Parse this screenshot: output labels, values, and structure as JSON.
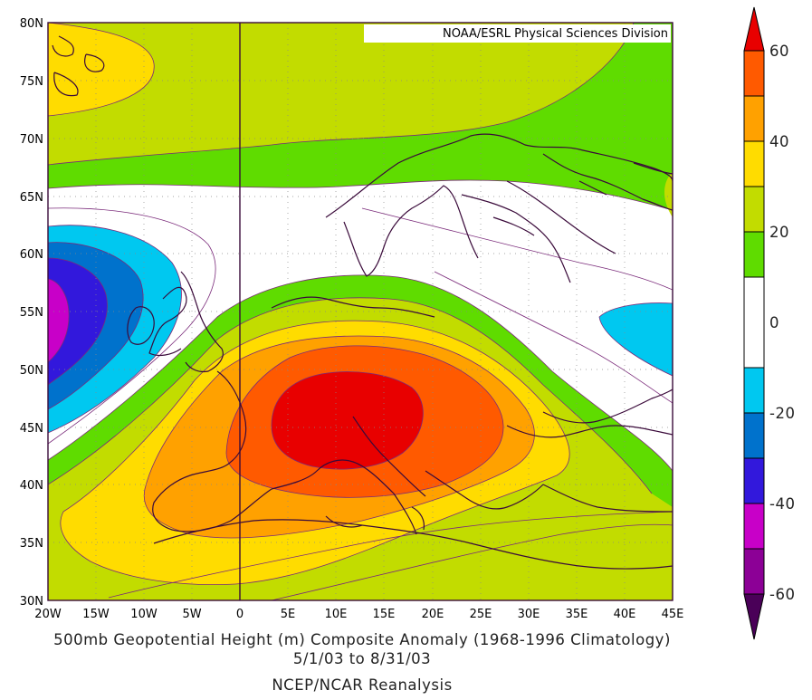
{
  "map": {
    "credit": "NOAA/ESRL Physical Sciences Division",
    "lat_labels": [
      "80N",
      "75N",
      "70N",
      "65N",
      "60N",
      "55N",
      "50N",
      "45N",
      "40N",
      "35N",
      "30N"
    ],
    "lon_labels": [
      "20W",
      "15W",
      "10W",
      "5W",
      "0",
      "5E",
      "10E",
      "15E",
      "20E",
      "25E",
      "30E",
      "35E",
      "40E",
      "45E"
    ],
    "extent": {
      "lon_min": -20,
      "lon_max": 45,
      "lat_min": 30,
      "lat_max": 80
    }
  },
  "caption": {
    "line1": "500mb Geopotential Height (m) Composite Anomaly (1968-1996 Climatology)",
    "line2": "5/1/03   to 8/31/03",
    "line3": "NCEP/NCAR Reanalysis"
  },
  "colorbar": {
    "labels": [
      "60",
      "40",
      "20",
      "0",
      "-20",
      "-40",
      "-60"
    ],
    "colors": {
      "gt60": "#e80000",
      "c50_60": "#ff5a00",
      "c40_50": "#ffa100",
      "c30_40": "#ffdc00",
      "c20_30": "#c2dc00",
      "c10_20": "#5fdc00",
      "cm10_10": "#ffffff",
      "cm20_m10": "#00c8f0",
      "cm30_m20": "#0072cc",
      "cm40_m30": "#3218dc",
      "cm50_m40": "#c800c8",
      "cm60_m50": "#8c0096",
      "ltm60": "#4a0058"
    }
  }
}
